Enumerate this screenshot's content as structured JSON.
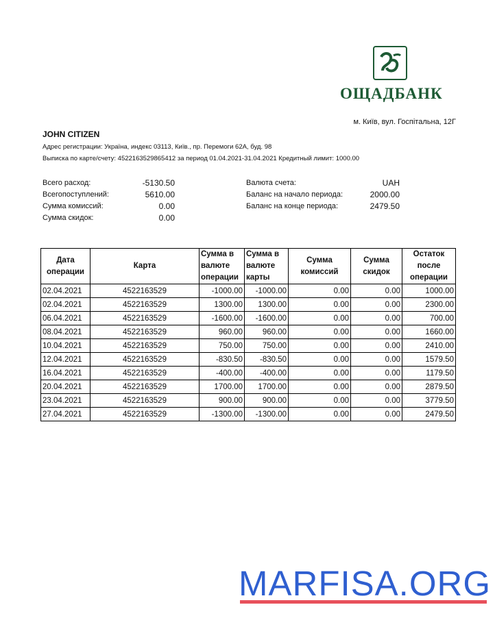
{
  "bank": {
    "name": "ОЩАДБАНК",
    "address": "м. Київ, вул. Госпітальна, 12Г",
    "brand_color": "#1d5a34"
  },
  "client": {
    "name": "JOHN CITIZEN",
    "registration": "Адрес регистрации: Україна, индекс 03113, Київ., пр. Перемоги 62А, буд. 98",
    "statement": "Выписка по карте/счету: 4522163529865412 за период 01.04.2021-31.04.2021 Кредитный лимит: 1000.00"
  },
  "summary_left": [
    {
      "label": "Всего расход:",
      "value": "-5130.50"
    },
    {
      "label": "Всегопоступлений:",
      "value": "5610.00"
    },
    {
      "label": "Сумма комиссий:",
      "value": "0.00"
    },
    {
      "label": "Сумма скидок:",
      "value": "0.00"
    }
  ],
  "summary_right": [
    {
      "label": "Валюта счета:",
      "value": "UAH"
    },
    {
      "label": "Баланс на начало периода:",
      "value": "2000.00"
    },
    {
      "label": "Баланс на конце периода:",
      "value": "2479.50"
    }
  ],
  "table": {
    "headers": [
      "Дата операции",
      "Карта",
      "Сумма в валюте операции",
      "Сумма в валюте карты",
      "Сумма комиссий",
      "Сумма скидок",
      "Остаток после операции"
    ],
    "rows": [
      [
        "02.04.2021",
        "4522163529",
        "-1000.00",
        "-1000.00",
        "0.00",
        "0.00",
        "1000.00"
      ],
      [
        "02.04.2021",
        "4522163529",
        "1300.00",
        "1300.00",
        "0.00",
        "0.00",
        "2300.00"
      ],
      [
        "06.04.2021",
        "4522163529",
        "-1600.00",
        "-1600.00",
        "0.00",
        "0.00",
        "700.00"
      ],
      [
        "08.04.2021",
        "4522163529",
        "960.00",
        "960.00",
        "0.00",
        "0.00",
        "1660.00"
      ],
      [
        "10.04.2021",
        "4522163529",
        "750.00",
        "750.00",
        "0.00",
        "0.00",
        "2410.00"
      ],
      [
        "12.04.2021",
        "4522163529",
        "-830.50",
        "-830.50",
        "0.00",
        "0.00",
        "1579.50"
      ],
      [
        "16.04.2021",
        "4522163529",
        "-400.00",
        "-400.00",
        "0.00",
        "0.00",
        "1179.50"
      ],
      [
        "20.04.2021",
        "4522163529",
        "1700.00",
        "1700.00",
        "0.00",
        "0.00",
        "2879.50"
      ],
      [
        "23.04.2021",
        "4522163529",
        "900.00",
        "900.00",
        "0.00",
        "0.00",
        "3779.50"
      ],
      [
        "27.04.2021",
        "4522163529",
        "-1300.00",
        "-1300.00",
        "0.00",
        "0.00",
        "2479.50"
      ]
    ]
  },
  "watermark": "MARFISA.ORG"
}
